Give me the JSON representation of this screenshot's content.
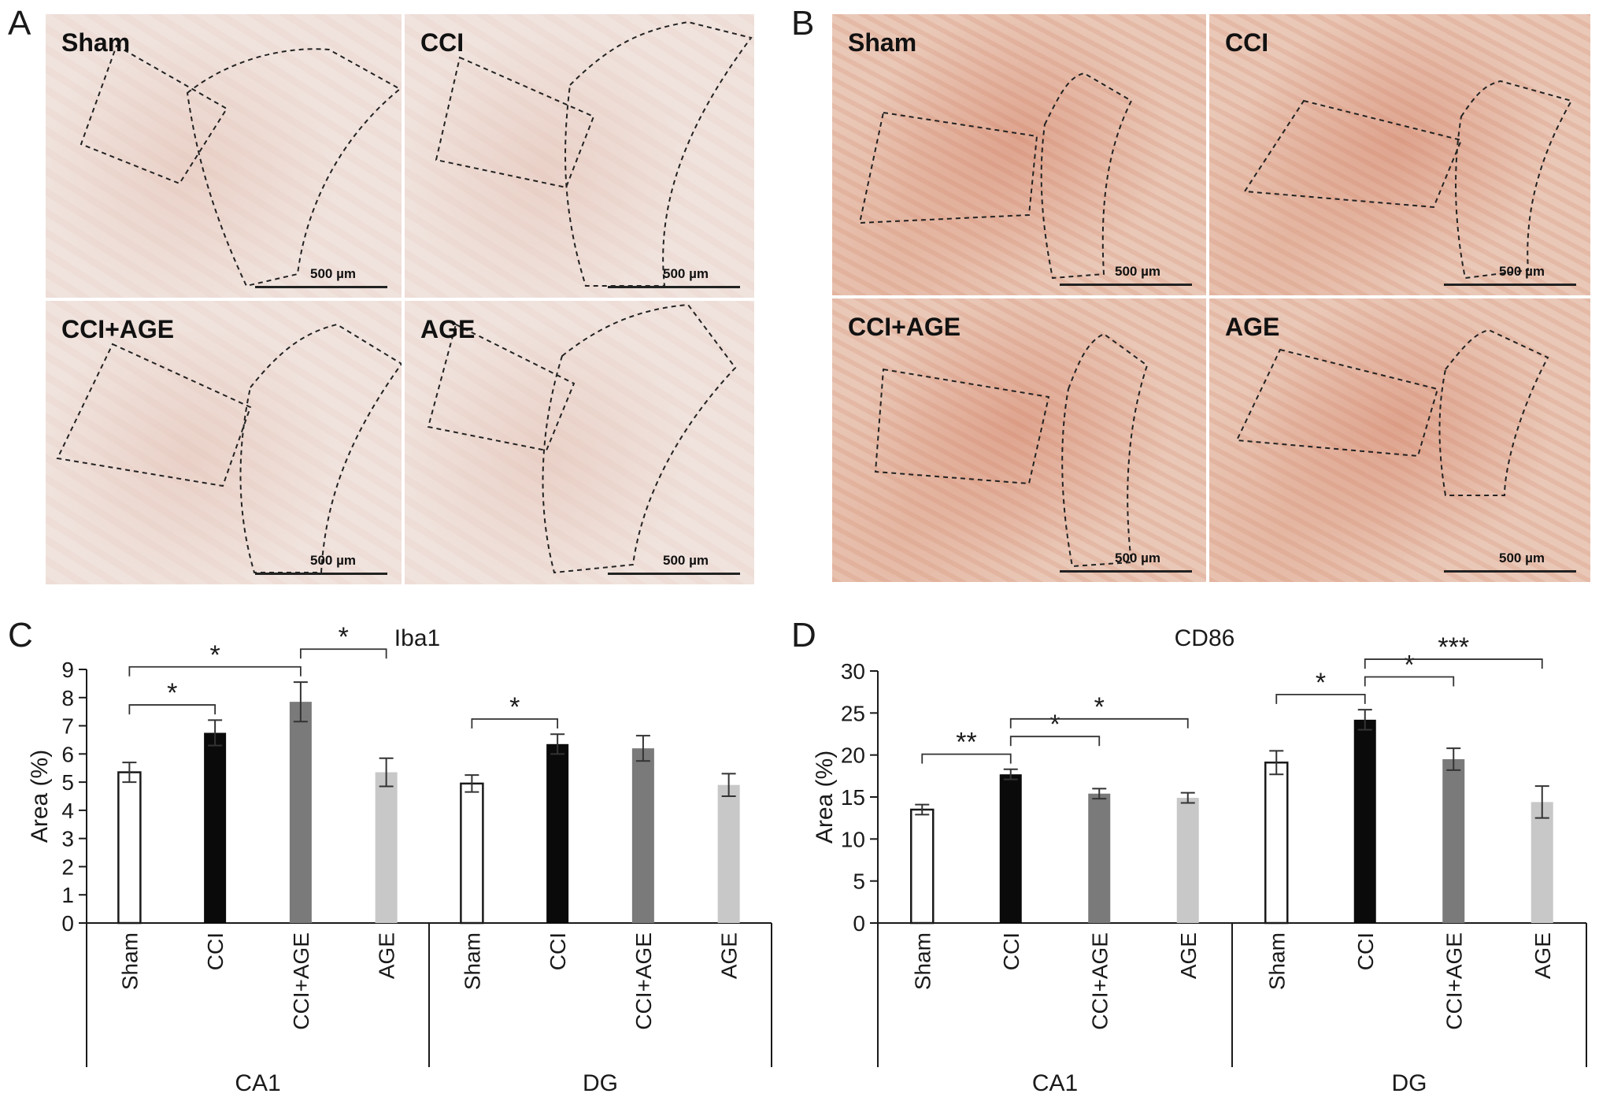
{
  "panels": {
    "A": {
      "letter": "A",
      "images": [
        {
          "label": "Sham",
          "scale": "500 µm"
        },
        {
          "label": "CCI",
          "scale": "500 µm"
        },
        {
          "label": "CCI+AGE",
          "scale": "500 µm"
        },
        {
          "label": "AGE",
          "scale": "500 µm"
        }
      ]
    },
    "B": {
      "letter": "B",
      "images": [
        {
          "label": "Sham",
          "scale": "500 µm"
        },
        {
          "label": "CCI",
          "scale": "500 µm"
        },
        {
          "label": "CCI+AGE",
          "scale": "500 µm"
        },
        {
          "label": "AGE",
          "scale": "500 µm"
        }
      ]
    }
  },
  "colors": {
    "sham": "#ffffff",
    "cci": "#0a0a0a",
    "cci_age": "#7a7a7a",
    "age": "#c8c8c8",
    "axis": "#1a1a1a"
  },
  "chart_data": [
    {
      "panel_letter": "C",
      "type": "bar",
      "title": "Iba1",
      "ylabel": "Area (%)",
      "ylim": [
        0,
        9
      ],
      "yticks": [
        0,
        1,
        2,
        3,
        4,
        5,
        6,
        7,
        8,
        9
      ],
      "categories": [
        "Sham",
        "CCI",
        "CCI+AGE",
        "AGE"
      ],
      "groups": [
        {
          "name": "CA1",
          "values": [
            5.35,
            6.75,
            7.85,
            5.35
          ],
          "errors": [
            0.35,
            0.45,
            0.7,
            0.5
          ]
        },
        {
          "name": "DG",
          "values": [
            4.95,
            6.35,
            6.2,
            4.9
          ],
          "errors": [
            0.3,
            0.35,
            0.45,
            0.4
          ]
        }
      ],
      "significance": [
        {
          "group": 0,
          "from": 0,
          "to": 1,
          "label": "*"
        },
        {
          "group": 0,
          "from": 0,
          "to": 2,
          "label": "*"
        },
        {
          "group": 0,
          "from": 2,
          "to": 3,
          "label": "*"
        },
        {
          "group": 1,
          "from": 0,
          "to": 1,
          "label": "*"
        }
      ]
    },
    {
      "panel_letter": "D",
      "type": "bar",
      "title": "CD86",
      "ylabel": "Area (%)",
      "ylim": [
        0,
        30
      ],
      "yticks": [
        0,
        5,
        10,
        15,
        20,
        25,
        30
      ],
      "categories": [
        "Sham",
        "CCI",
        "CCI+AGE",
        "AGE"
      ],
      "groups": [
        {
          "name": "CA1",
          "values": [
            13.5,
            17.7,
            15.4,
            14.9
          ],
          "errors": [
            0.6,
            0.6,
            0.6,
            0.6
          ]
        },
        {
          "name": "DG",
          "values": [
            19.1,
            24.2,
            19.5,
            14.4
          ],
          "errors": [
            1.4,
            1.2,
            1.3,
            1.9
          ]
        }
      ],
      "significance": [
        {
          "group": 0,
          "from": 0,
          "to": 1,
          "label": "**"
        },
        {
          "group": 0,
          "from": 1,
          "to": 2,
          "label": "*"
        },
        {
          "group": 0,
          "from": 1,
          "to": 3,
          "label": "*"
        },
        {
          "group": 1,
          "from": 0,
          "to": 1,
          "label": "*"
        },
        {
          "group": 1,
          "from": 1,
          "to": 2,
          "label": "*"
        },
        {
          "group": 1,
          "from": 1,
          "to": 3,
          "label": "***"
        }
      ]
    }
  ]
}
